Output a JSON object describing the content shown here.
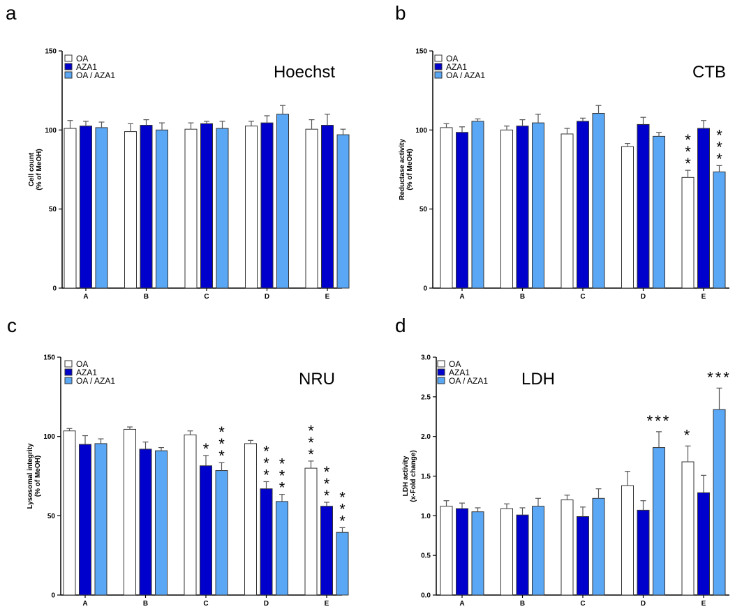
{
  "panels": [
    {
      "letter": "a",
      "chart_data": {
        "type": "bar",
        "title": "Hoechst",
        "ylabel_line1": "Cell count",
        "ylabel_line2": "(% of MeOH)",
        "categories": [
          "A",
          "B",
          "C",
          "D",
          "E"
        ],
        "ylim": [
          0,
          150
        ],
        "yticks": [
          "0",
          "50",
          "100",
          "150"
        ],
        "legend_position": "top-left",
        "series": [
          {
            "name": "OA",
            "color": "#ffffff",
            "values": [
              101,
              99,
              100.5,
              102.5,
              100.5
            ],
            "errors": [
              5,
              5,
              4,
              3,
              6
            ],
            "stars": [
              "",
              "",
              "",
              "",
              ""
            ]
          },
          {
            "name": "AZA1",
            "color": "#0000cc",
            "values": [
              102.5,
              103,
              104,
              104.5,
              103
            ],
            "errors": [
              3,
              3.5,
              1.5,
              4.5,
              7
            ],
            "stars": [
              "",
              "",
              "",
              "",
              ""
            ]
          },
          {
            "name": "OA / AZA1",
            "color": "#5aa7f5",
            "values": [
              101.5,
              100,
              101,
              110,
              97
            ],
            "errors": [
              3.5,
              4.5,
              4.5,
              5.5,
              3.5
            ],
            "stars": [
              "",
              "",
              "",
              "",
              ""
            ]
          }
        ]
      }
    },
    {
      "letter": "b",
      "chart_data": {
        "type": "bar",
        "title": "CTB",
        "ylabel_line1": "Reductase activity",
        "ylabel_line2": "(% of MeOH)",
        "categories": [
          "A",
          "B",
          "C",
          "D",
          "E"
        ],
        "ylim": [
          0,
          150
        ],
        "yticks": [
          "0",
          "50",
          "100",
          "150"
        ],
        "legend_position": "top-left",
        "series": [
          {
            "name": "OA",
            "color": "#ffffff",
            "values": [
              101.5,
              100,
              97.5,
              89.5,
              70
            ],
            "errors": [
              2.5,
              2.5,
              3.5,
              2,
              4.5
            ],
            "stars": [
              "",
              "",
              "",
              "",
              "***"
            ]
          },
          {
            "name": "AZA1",
            "color": "#0000cc",
            "values": [
              98.5,
              102.5,
              105.5,
              103.5,
              101
            ],
            "errors": [
              3.5,
              4,
              2,
              4.5,
              5
            ],
            "stars": [
              "",
              "",
              "",
              "",
              ""
            ]
          },
          {
            "name": "OA / AZA1",
            "color": "#5aa7f5",
            "values": [
              105.5,
              104.5,
              110.5,
              96,
              73.5
            ],
            "errors": [
              1.5,
              5.5,
              5,
              2.5,
              4
            ],
            "stars": [
              "",
              "",
              "",
              "",
              "***"
            ]
          }
        ]
      }
    },
    {
      "letter": "c",
      "chart_data": {
        "type": "bar",
        "title": "NRU",
        "ylabel_line1": "Lysosomal integrity",
        "ylabel_line2": "(% of MeOH)",
        "categories": [
          "A",
          "B",
          "C",
          "D",
          "E"
        ],
        "ylim": [
          0,
          150
        ],
        "yticks": [
          "0",
          "50",
          "100",
          "150"
        ],
        "legend_position": "top-left",
        "series": [
          {
            "name": "OA",
            "color": "#ffffff",
            "values": [
              103.5,
              104.5,
              101,
              95.5,
              80
            ],
            "errors": [
              1.5,
              1.5,
              2.5,
              2,
              4.5
            ],
            "stars": [
              "",
              "",
              "",
              "",
              "***"
            ]
          },
          {
            "name": "AZA1",
            "color": "#0000cc",
            "values": [
              95,
              92,
              81.5,
              67,
              56
            ],
            "errors": [
              5.5,
              4.5,
              6.5,
              4.5,
              2.5
            ],
            "stars": [
              "",
              "",
              "*",
              "***",
              "***"
            ]
          },
          {
            "name": "OA / AZA1",
            "color": "#5aa7f5",
            "values": [
              95.5,
              91,
              78.5,
              59,
              39.5
            ],
            "errors": [
              3,
              2,
              5,
              4.5,
              3
            ],
            "stars": [
              "",
              "",
              "***",
              "***",
              "***"
            ]
          }
        ]
      }
    },
    {
      "letter": "d",
      "chart_data": {
        "type": "bar",
        "title": "LDH",
        "ylabel_line1": "LDH activity",
        "ylabel_line2": "(x-Fold change)",
        "categories": [
          "A",
          "B",
          "C",
          "D",
          "E"
        ],
        "ylim": [
          0,
          3.0
        ],
        "yticks": [
          "0.0",
          "0.5",
          "1.0",
          "1.5",
          "2.0",
          "2.5",
          "3.0"
        ],
        "legend_position": "top-left",
        "series": [
          {
            "name": "OA",
            "color": "#ffffff",
            "values": [
              1.12,
              1.09,
              1.2,
              1.38,
              1.68
            ],
            "errors": [
              0.07,
              0.06,
              0.06,
              0.18,
              0.2
            ],
            "stars": [
              "",
              "",
              "",
              "",
              "*"
            ]
          },
          {
            "name": "AZA1",
            "color": "#0000cc",
            "values": [
              1.09,
              1.01,
              0.99,
              1.07,
              1.29
            ],
            "errors": [
              0.07,
              0.09,
              0.12,
              0.12,
              0.22
            ],
            "stars": [
              "",
              "",
              "",
              "",
              ""
            ]
          },
          {
            "name": "OA / AZA1",
            "color": "#5aa7f5",
            "values": [
              1.05,
              1.12,
              1.22,
              1.86,
              2.34
            ],
            "errors": [
              0.05,
              0.1,
              0.12,
              0.2,
              0.27
            ],
            "stars": [
              "",
              "",
              "",
              "***",
              "***"
            ]
          }
        ]
      }
    }
  ]
}
